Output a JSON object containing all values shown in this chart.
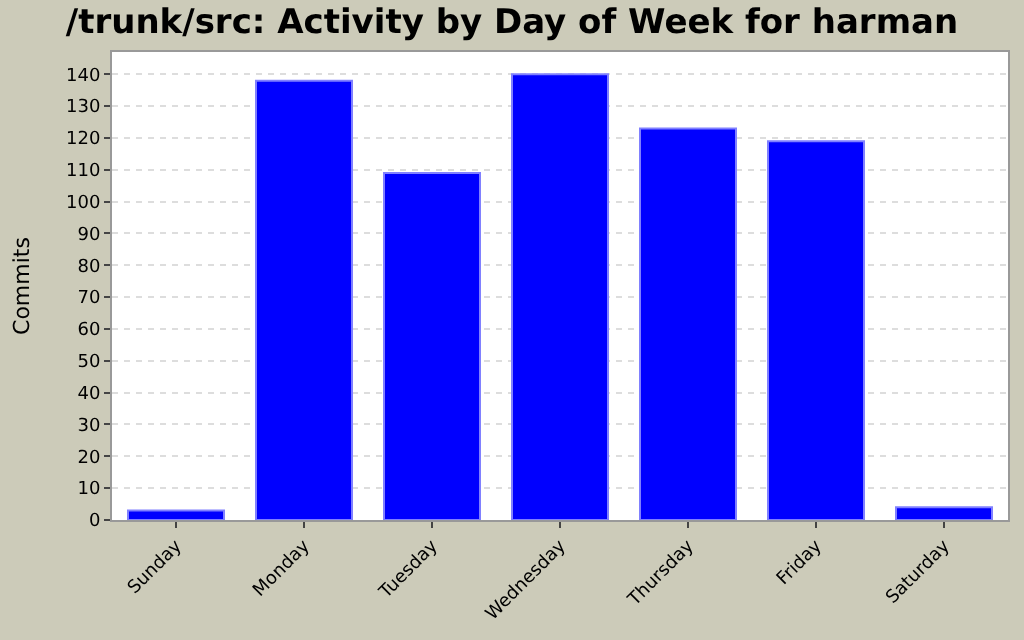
{
  "chart_data": {
    "type": "bar",
    "title": "/trunk/src: Activity by Day of Week for harman",
    "ylabel": "Commits",
    "categories": [
      "Sunday",
      "Monday",
      "Tuesday",
      "Wednesday",
      "Thursday",
      "Friday",
      "Saturday"
    ],
    "values": [
      3,
      138,
      109,
      140,
      123,
      119,
      4
    ],
    "color": "#0000ff",
    "ylim": [
      0,
      147
    ],
    "yticks": [
      0,
      10,
      20,
      30,
      40,
      50,
      60,
      70,
      80,
      90,
      100,
      110,
      120,
      130,
      140
    ],
    "grid": "y"
  }
}
